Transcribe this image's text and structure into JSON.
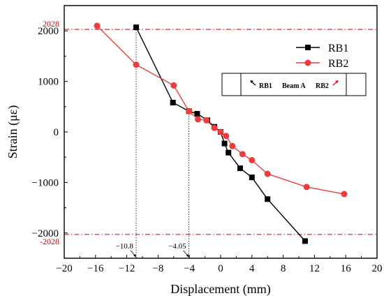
{
  "chart_data": {
    "type": "line",
    "xlabel": "Displacement (mm)",
    "ylabel": "Strain (με)",
    "xlim": [
      -20,
      20
    ],
    "ylim": [
      -2500,
      2500
    ],
    "x_ticks": [
      -20,
      -16,
      -12,
      -8,
      -4,
      0,
      4,
      8,
      12,
      16,
      20
    ],
    "y_ticks": [
      -2000,
      -1000,
      0,
      1000,
      2000
    ],
    "x_tick_labels": [
      "−20",
      "−16",
      "−12",
      "−8",
      "−4",
      "0",
      "4",
      "8",
      "12",
      "16",
      "20"
    ],
    "y_tick_labels": [
      "−2000",
      "−1000",
      "0",
      "1000",
      "2000"
    ],
    "legend_position": "top-right",
    "series": [
      {
        "name": "RB1",
        "color": "#000000",
        "marker": "square",
        "points": [
          [
            -10.8,
            2070
          ],
          [
            -6.1,
            580
          ],
          [
            -4.05,
            410
          ],
          [
            -3.0,
            360
          ],
          [
            -1.7,
            230
          ],
          [
            -0.8,
            100
          ],
          [
            0,
            0
          ],
          [
            0.5,
            -230
          ],
          [
            1.0,
            -410
          ],
          [
            2.5,
            -720
          ],
          [
            4.0,
            -900
          ],
          [
            6.0,
            -1330
          ],
          [
            10.8,
            -2160
          ]
        ]
      },
      {
        "name": "RB2",
        "color": "#ee3b3b",
        "marker": "circle",
        "points": [
          [
            -15.8,
            2100
          ],
          [
            -10.8,
            1330
          ],
          [
            -6.0,
            920
          ],
          [
            -4.05,
            410
          ],
          [
            -2.9,
            250
          ],
          [
            -1.8,
            230
          ],
          [
            -0.8,
            80
          ],
          [
            0,
            0
          ],
          [
            0.7,
            -80
          ],
          [
            1.5,
            -280
          ],
          [
            2.8,
            -440
          ],
          [
            4.0,
            -560
          ],
          [
            6.0,
            -830
          ],
          [
            11.0,
            -1090
          ],
          [
            15.8,
            -1230
          ]
        ]
      }
    ],
    "reference_lines": {
      "horizontal": [
        {
          "value": 2028,
          "label": "2028",
          "color": "#cc0000"
        },
        {
          "value": -2028,
          "label": "-2028",
          "color": "#cc0000"
        }
      ],
      "vertical": [
        {
          "value": -10.8,
          "label": "−10.8"
        },
        {
          "value": -4.05,
          "label": "−4.05"
        }
      ]
    },
    "inset": {
      "left_label": "RB1",
      "center_label": "Beam A",
      "right_label": "RB2"
    }
  }
}
